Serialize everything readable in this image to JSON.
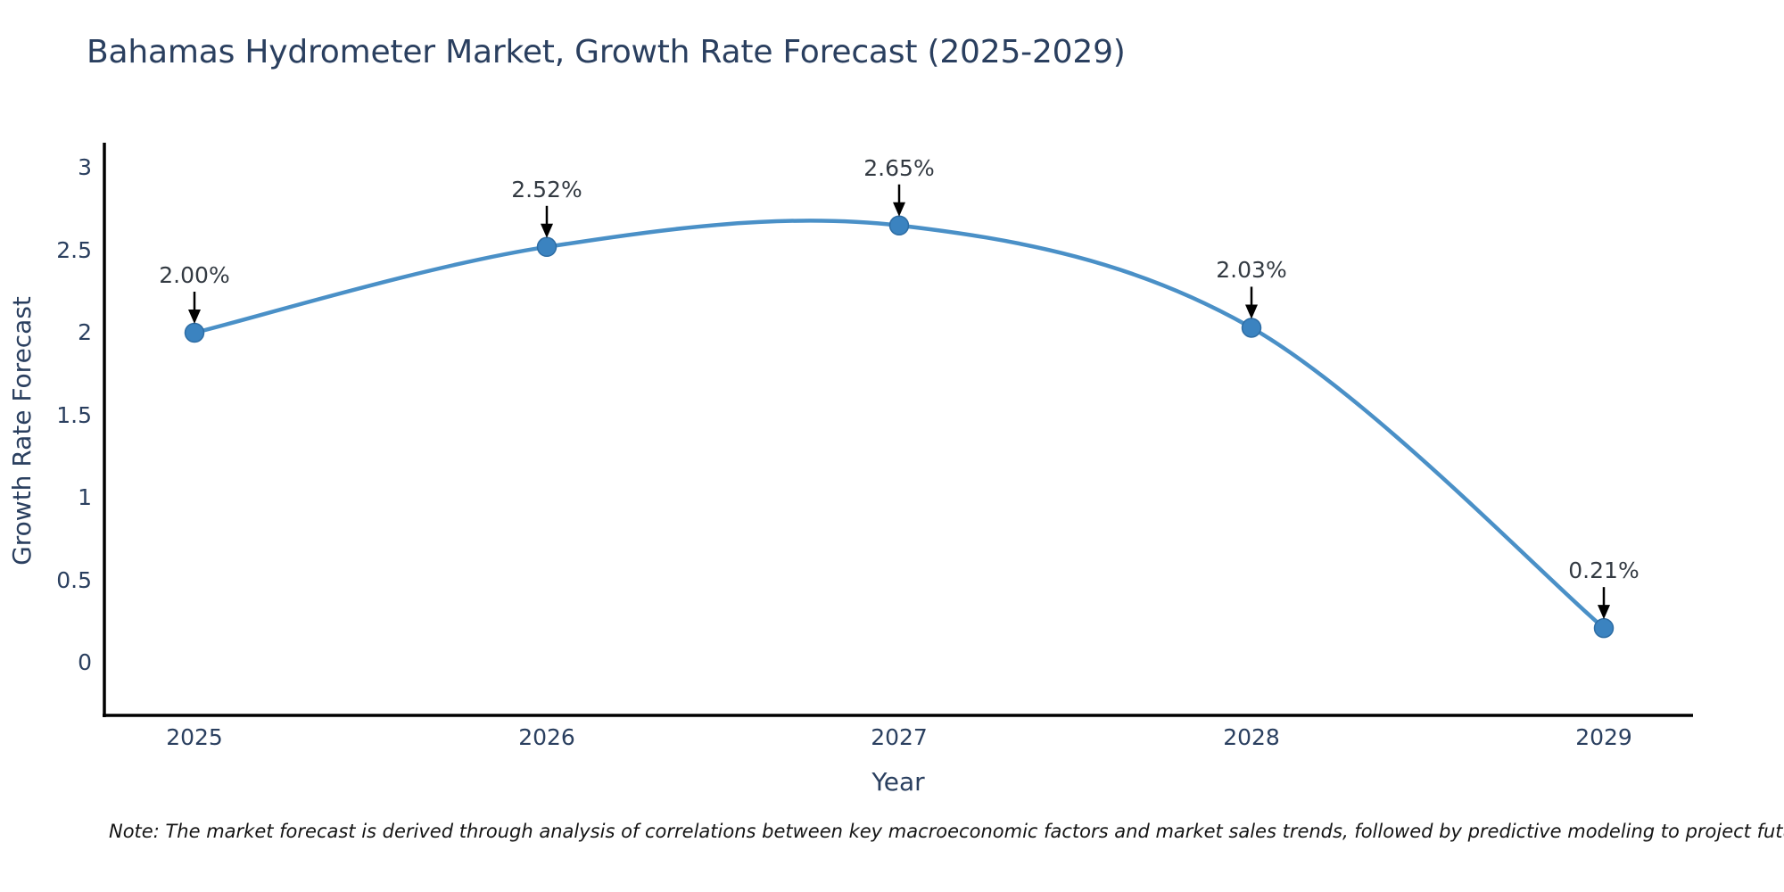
{
  "chart": {
    "title": "Bahamas Hydrometer Market, Growth Rate Forecast (2025-2029)",
    "note": "Note: The market forecast is derived through analysis of correlations between key macroeconomic factors and market sales trends, followed by predictive modeling to project future sales"
  },
  "chart_data": {
    "type": "line",
    "title": "Bahamas Hydrometer Market, Growth Rate Forecast (2025-2029)",
    "xlabel": "Year",
    "ylabel": "Growth Rate Forecast",
    "categories": [
      "2025",
      "2026",
      "2027",
      "2028",
      "2029"
    ],
    "series": [
      {
        "name": "Growth Rate Forecast",
        "values": [
          2.0,
          2.52,
          2.65,
          2.03,
          0.21
        ],
        "point_labels": [
          "2.00%",
          "2.52%",
          "2.65%",
          "2.03%",
          "0.21%"
        ]
      }
    ],
    "y_ticks": [
      0,
      0.5,
      1,
      1.5,
      2,
      2.5,
      3
    ],
    "y_tick_labels": [
      "0",
      "0.5",
      "1",
      "1.5",
      "2",
      "2.5",
      "3"
    ],
    "ylim": [
      -0.35,
      3.15
    ],
    "grid": false,
    "legend": "none",
    "line_shape": "spline",
    "marker": "circle",
    "annotation_style": "value-label-with-down-arrow",
    "colors": {
      "line": "#4a90c7",
      "marker_fill": "#3b83c0",
      "marker_edge": "#2e6da4",
      "axis": "#000000",
      "arrow": "#000000",
      "title_text": "#2a3f5f",
      "tick_text": "#2a3f5f",
      "annotation_text": "#333a42",
      "background": "#ffffff"
    }
  }
}
